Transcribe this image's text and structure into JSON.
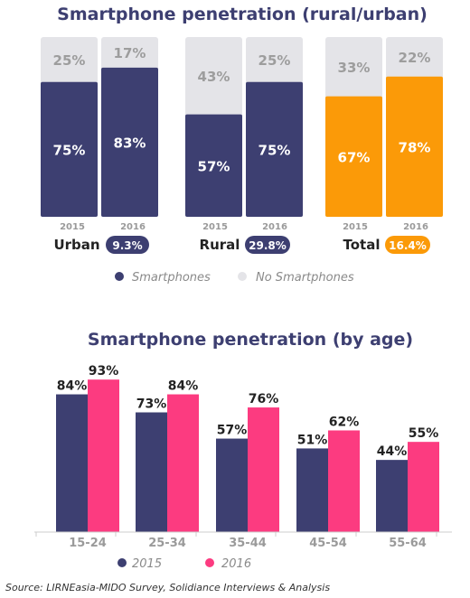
{
  "chart_data": [
    {
      "type": "bar",
      "stacked": true,
      "title": "Smartphone penetration (rural/urban)",
      "groups": [
        {
          "name": "Urban",
          "growth_badge": "9.3%",
          "years": [
            "2015",
            "2016"
          ],
          "smartphones": [
            75,
            83
          ],
          "no_smartphones": [
            25,
            17
          ],
          "color": "#3d3f71",
          "badge_color": "#3d3f71"
        },
        {
          "name": "Rural",
          "growth_badge": "29.8%",
          "years": [
            "2015",
            "2016"
          ],
          "smartphones": [
            57,
            75
          ],
          "no_smartphones": [
            43,
            25
          ],
          "color": "#3d3f71",
          "badge_color": "#3d3f71"
        },
        {
          "name": "Total",
          "growth_badge": "16.4%",
          "years": [
            "2015",
            "2016"
          ],
          "smartphones": [
            67,
            78
          ],
          "no_smartphones": [
            33,
            22
          ],
          "color": "#fb9a08",
          "badge_color": "#fb9a08"
        }
      ],
      "legend": [
        {
          "label": "Smartphones",
          "color": "#3d3f71"
        },
        {
          "label": "No Smartphones",
          "color": "#e4e4e8"
        }
      ],
      "background_color": "#e4e4e8",
      "ylim": [
        0,
        100
      ]
    },
    {
      "type": "bar",
      "title": "Smartphone penetration (by age)",
      "categories": [
        "15-24",
        "25-34",
        "35-44",
        "45-54",
        "55-64"
      ],
      "series": [
        {
          "name": "2015",
          "values": [
            84,
            73,
            57,
            51,
            44
          ],
          "color": "#3d3f71"
        },
        {
          "name": "2016",
          "values": [
            93,
            84,
            76,
            62,
            55
          ],
          "color": "#fc3b80"
        }
      ],
      "value_suffix": "%",
      "ylim": [
        0,
        100
      ],
      "legend_position": "bottom",
      "grid": false
    }
  ],
  "source": "Source: LIRNEasia-MIDO Survey, Solidiance Interviews & Analysis",
  "colors": {
    "title": "#3d3f71",
    "year_label": "#9a9a9a",
    "axis_line": "#cccccc",
    "legend_text": "#8a8a8a",
    "dark_text": "#222222"
  }
}
